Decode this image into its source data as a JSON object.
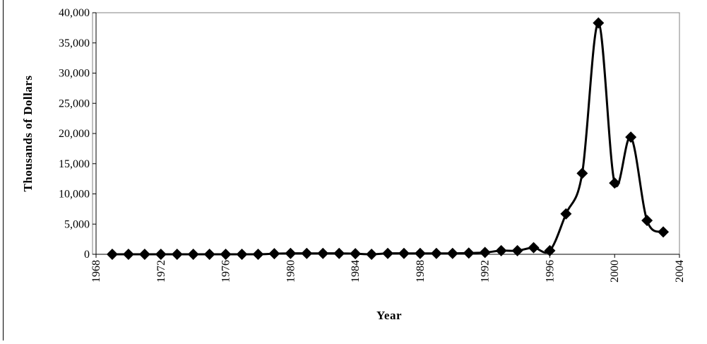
{
  "chart_data": {
    "type": "line",
    "title": "",
    "xlabel": "Year",
    "ylabel": "Thousands of Dollars",
    "xlim": [
      1968,
      2004
    ],
    "ylim": [
      0,
      40000
    ],
    "x_ticks": [
      "1968",
      "1972",
      "1976",
      "1980",
      "1984",
      "1988",
      "1992",
      "1996",
      "2000",
      "2004"
    ],
    "y_ticks": [
      "0",
      "5,000",
      "10,000",
      "15,000",
      "20,000",
      "25,000",
      "30,000",
      "35,000",
      "40,000"
    ],
    "grid": false,
    "legend": "none",
    "marker": "diamond",
    "line_style": "smoothed",
    "color": "#000000",
    "series": [
      {
        "x": [
          1969,
          1970,
          1971,
          1972,
          1973,
          1974,
          1975,
          1976,
          1977,
          1978,
          1979,
          1980,
          1981,
          1982,
          1983,
          1984,
          1985,
          1986,
          1987,
          1988,
          1989,
          1990,
          1991,
          1992,
          1993,
          1994,
          1995,
          1996,
          1997,
          1998,
          1999,
          2000,
          2001,
          2002,
          2003
        ],
        "values": [
          0,
          0,
          0,
          0,
          0,
          0,
          0,
          0,
          0,
          0,
          100,
          150,
          150,
          150,
          150,
          100,
          0,
          150,
          150,
          150,
          150,
          150,
          200,
          300,
          600,
          600,
          1100,
          600,
          6700,
          13400,
          38300,
          11800,
          19400,
          5600,
          3700
        ]
      }
    ]
  }
}
